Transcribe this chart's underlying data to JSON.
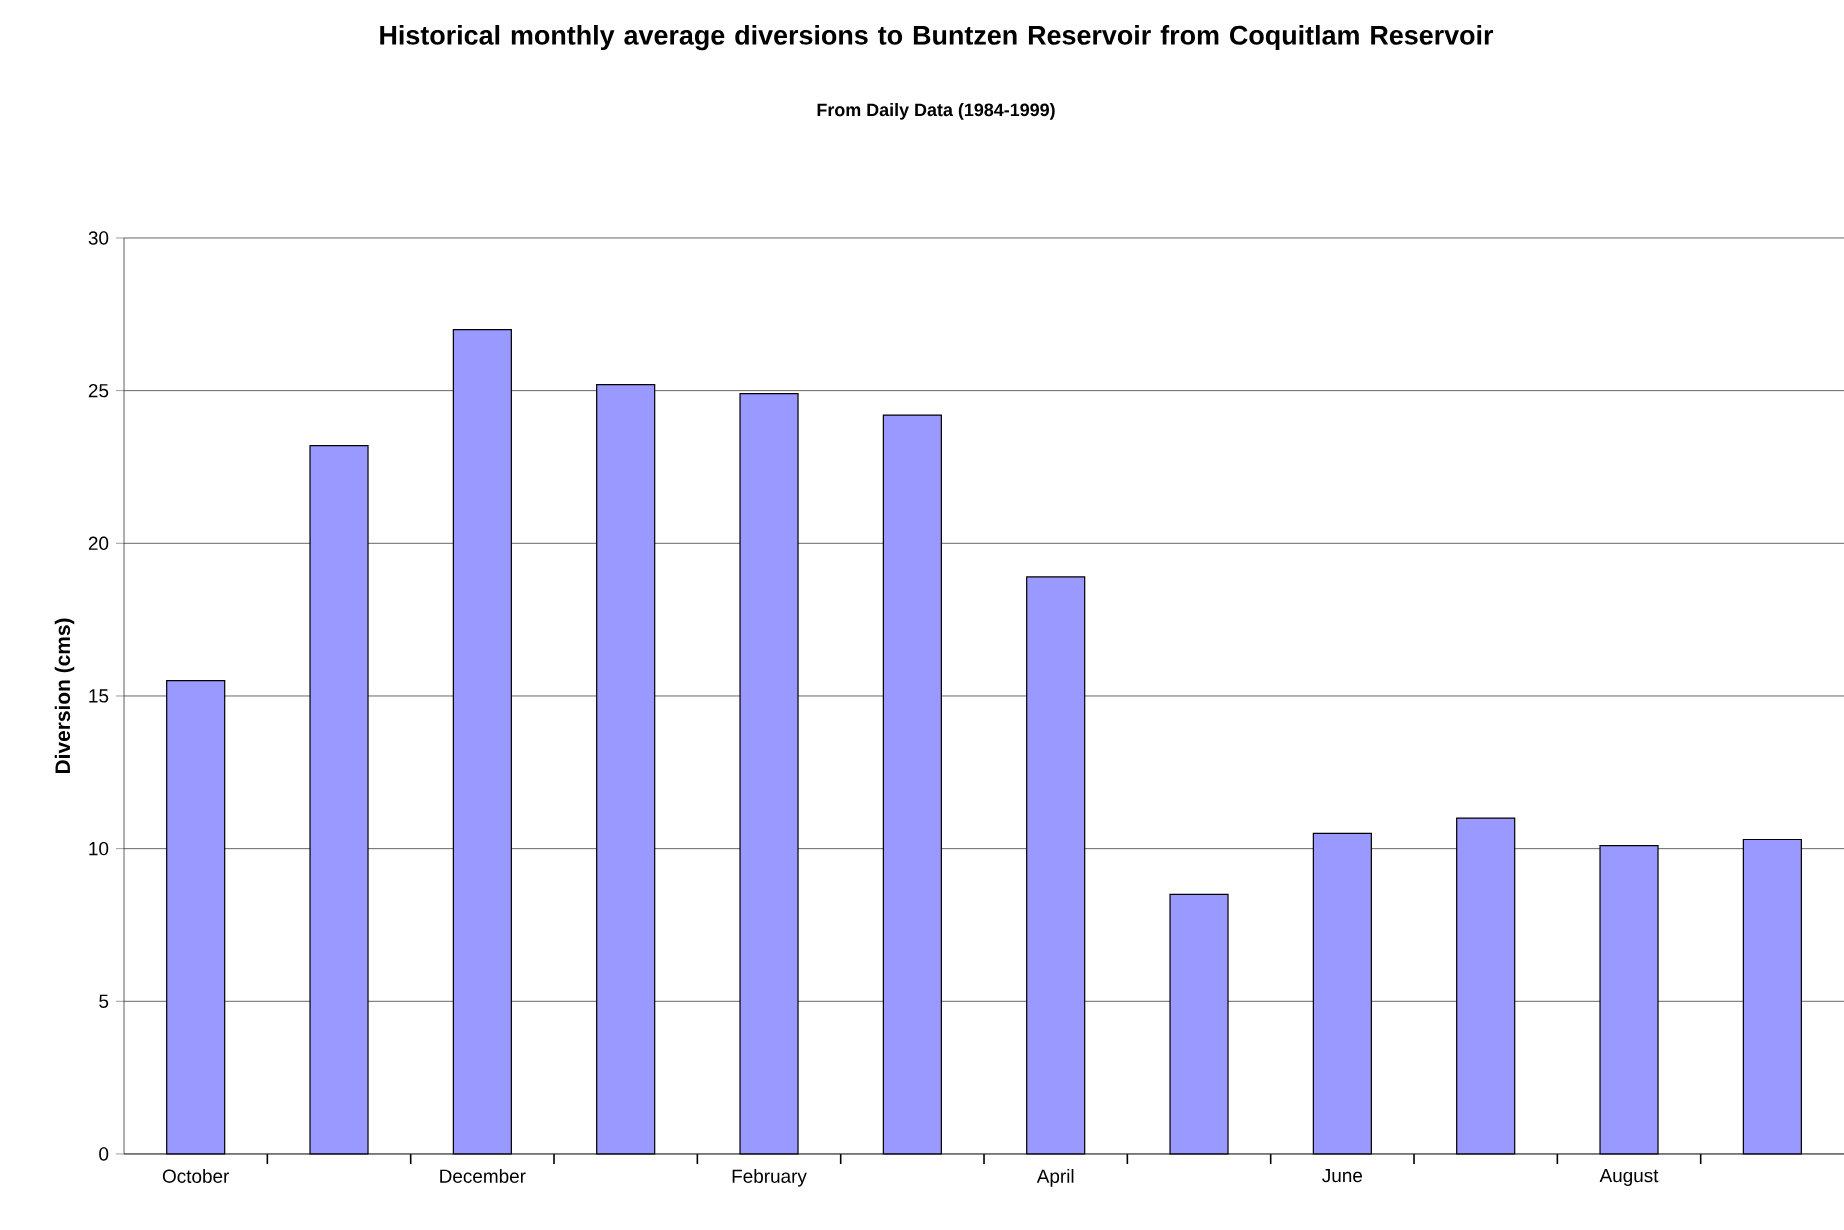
{
  "chart_data": {
    "type": "bar",
    "title": "Historical monthly average diversions to Buntzen Reservoir from Coquitlam Reservoir",
    "subtitle": "From Daily Data (1984-1999)",
    "ylabel": "Diversion (cms)",
    "categories": [
      "October",
      null,
      "December",
      null,
      "February",
      null,
      "April",
      null,
      "June",
      null,
      "August",
      null
    ],
    "values": [
      15.5,
      23.2,
      27.0,
      25.2,
      24.9,
      24.2,
      18.9,
      8.5,
      10.5,
      11.0,
      10.1,
      10.3
    ],
    "color": "#9999ff",
    "ylim": [
      0,
      30
    ],
    "yticks": [
      0,
      5,
      10,
      15,
      20,
      25,
      30
    ],
    "grid": "y"
  }
}
